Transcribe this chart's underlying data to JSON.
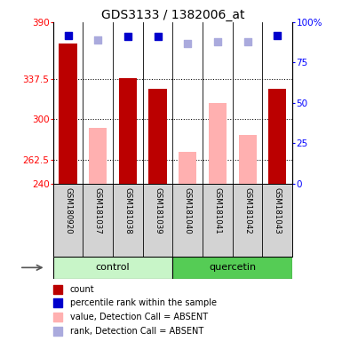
{
  "title": "GDS3133 / 1382006_at",
  "samples": [
    "GSM180920",
    "GSM181037",
    "GSM181038",
    "GSM181039",
    "GSM181040",
    "GSM181041",
    "GSM181042",
    "GSM181043"
  ],
  "ylim_left": [
    240,
    390
  ],
  "ylim_right": [
    0,
    100
  ],
  "yticks_left": [
    240,
    262.5,
    300,
    337.5,
    390
  ],
  "yticks_right": [
    0,
    25,
    50,
    75,
    100
  ],
  "ytick_labels_left": [
    "240",
    "262.5",
    "300",
    "337.5",
    "390"
  ],
  "ytick_labels_right": [
    "0",
    "25",
    "50",
    "75",
    "100%"
  ],
  "red_bar_values": [
    370,
    null,
    338,
    328,
    null,
    null,
    null,
    328
  ],
  "pink_bar_values": [
    null,
    292,
    null,
    null,
    270,
    315,
    285,
    null
  ],
  "blue_dot_y_right": [
    92,
    null,
    91,
    91,
    null,
    null,
    null,
    92
  ],
  "lavender_dot_y_right": [
    null,
    89,
    null,
    null,
    87,
    88,
    88,
    null
  ],
  "control_bg": "#c8f5c8",
  "quercetin_bg": "#55cc55",
  "sample_area_bg": "#d3d3d3",
  "red_color": "#bb0000",
  "pink_color": "#ffb0b0",
  "blue_color": "#0000cc",
  "lavender_color": "#aaaadd",
  "dot_size": 40,
  "legend_items": [
    "count",
    "percentile rank within the sample",
    "value, Detection Call = ABSENT",
    "rank, Detection Call = ABSENT"
  ]
}
